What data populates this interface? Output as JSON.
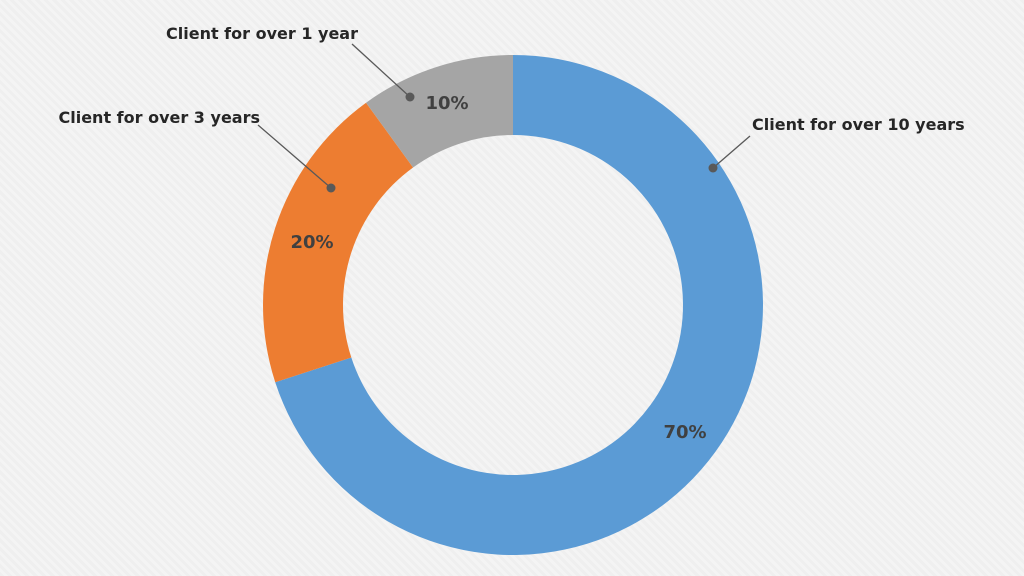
{
  "chart_data": {
    "type": "pie",
    "donut": true,
    "categories": [
      "Client for over 10 years",
      "Client for over 3 years",
      "Client for over 1 year"
    ],
    "values": [
      70,
      20,
      10
    ],
    "value_labels": [
      "70%",
      "20%",
      "10%"
    ],
    "colors": [
      "#5b9bd5",
      "#ed7d31",
      "#a5a5a5"
    ],
    "direction": "clockwise",
    "start_angle": "top",
    "legend": "none",
    "title": ""
  }
}
